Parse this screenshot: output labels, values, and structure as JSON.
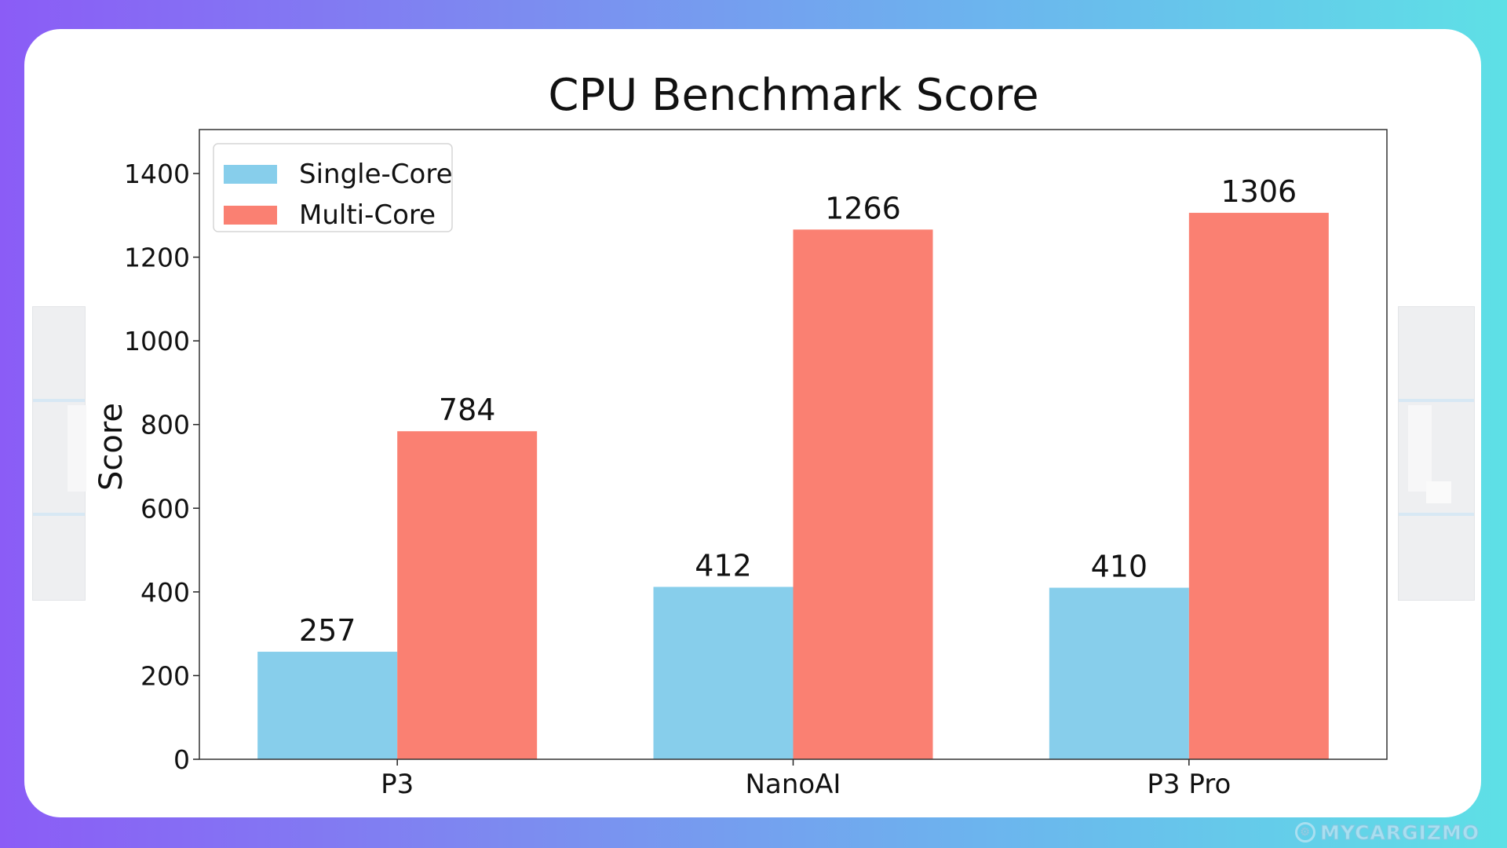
{
  "chart_data": {
    "type": "bar",
    "title": "CPU Benchmark Score",
    "xlabel": "",
    "ylabel": "Score",
    "categories": [
      "P3",
      "NanoAI",
      "P3 Pro"
    ],
    "series": [
      {
        "name": "Single-Core",
        "color": "#87ceeb",
        "values": [
          257,
          412,
          410
        ]
      },
      {
        "name": "Multi-Core",
        "color": "#fa8072",
        "values": [
          784,
          1266,
          1306
        ]
      }
    ],
    "ylim": [
      0,
      1505
    ],
    "yticks": [
      0,
      200,
      400,
      600,
      800,
      1000,
      1200,
      1400
    ],
    "legend_position": "upper-left",
    "grid": false,
    "data_labels": true
  },
  "watermark": {
    "text": "MYCARGIZMO",
    "icon": "gear-logo-icon"
  },
  "colors": {
    "background_gradient_start": "#8b5cf6",
    "background_gradient_end": "#5ee0e6",
    "card": "#ffffff",
    "axis": "#222222"
  }
}
